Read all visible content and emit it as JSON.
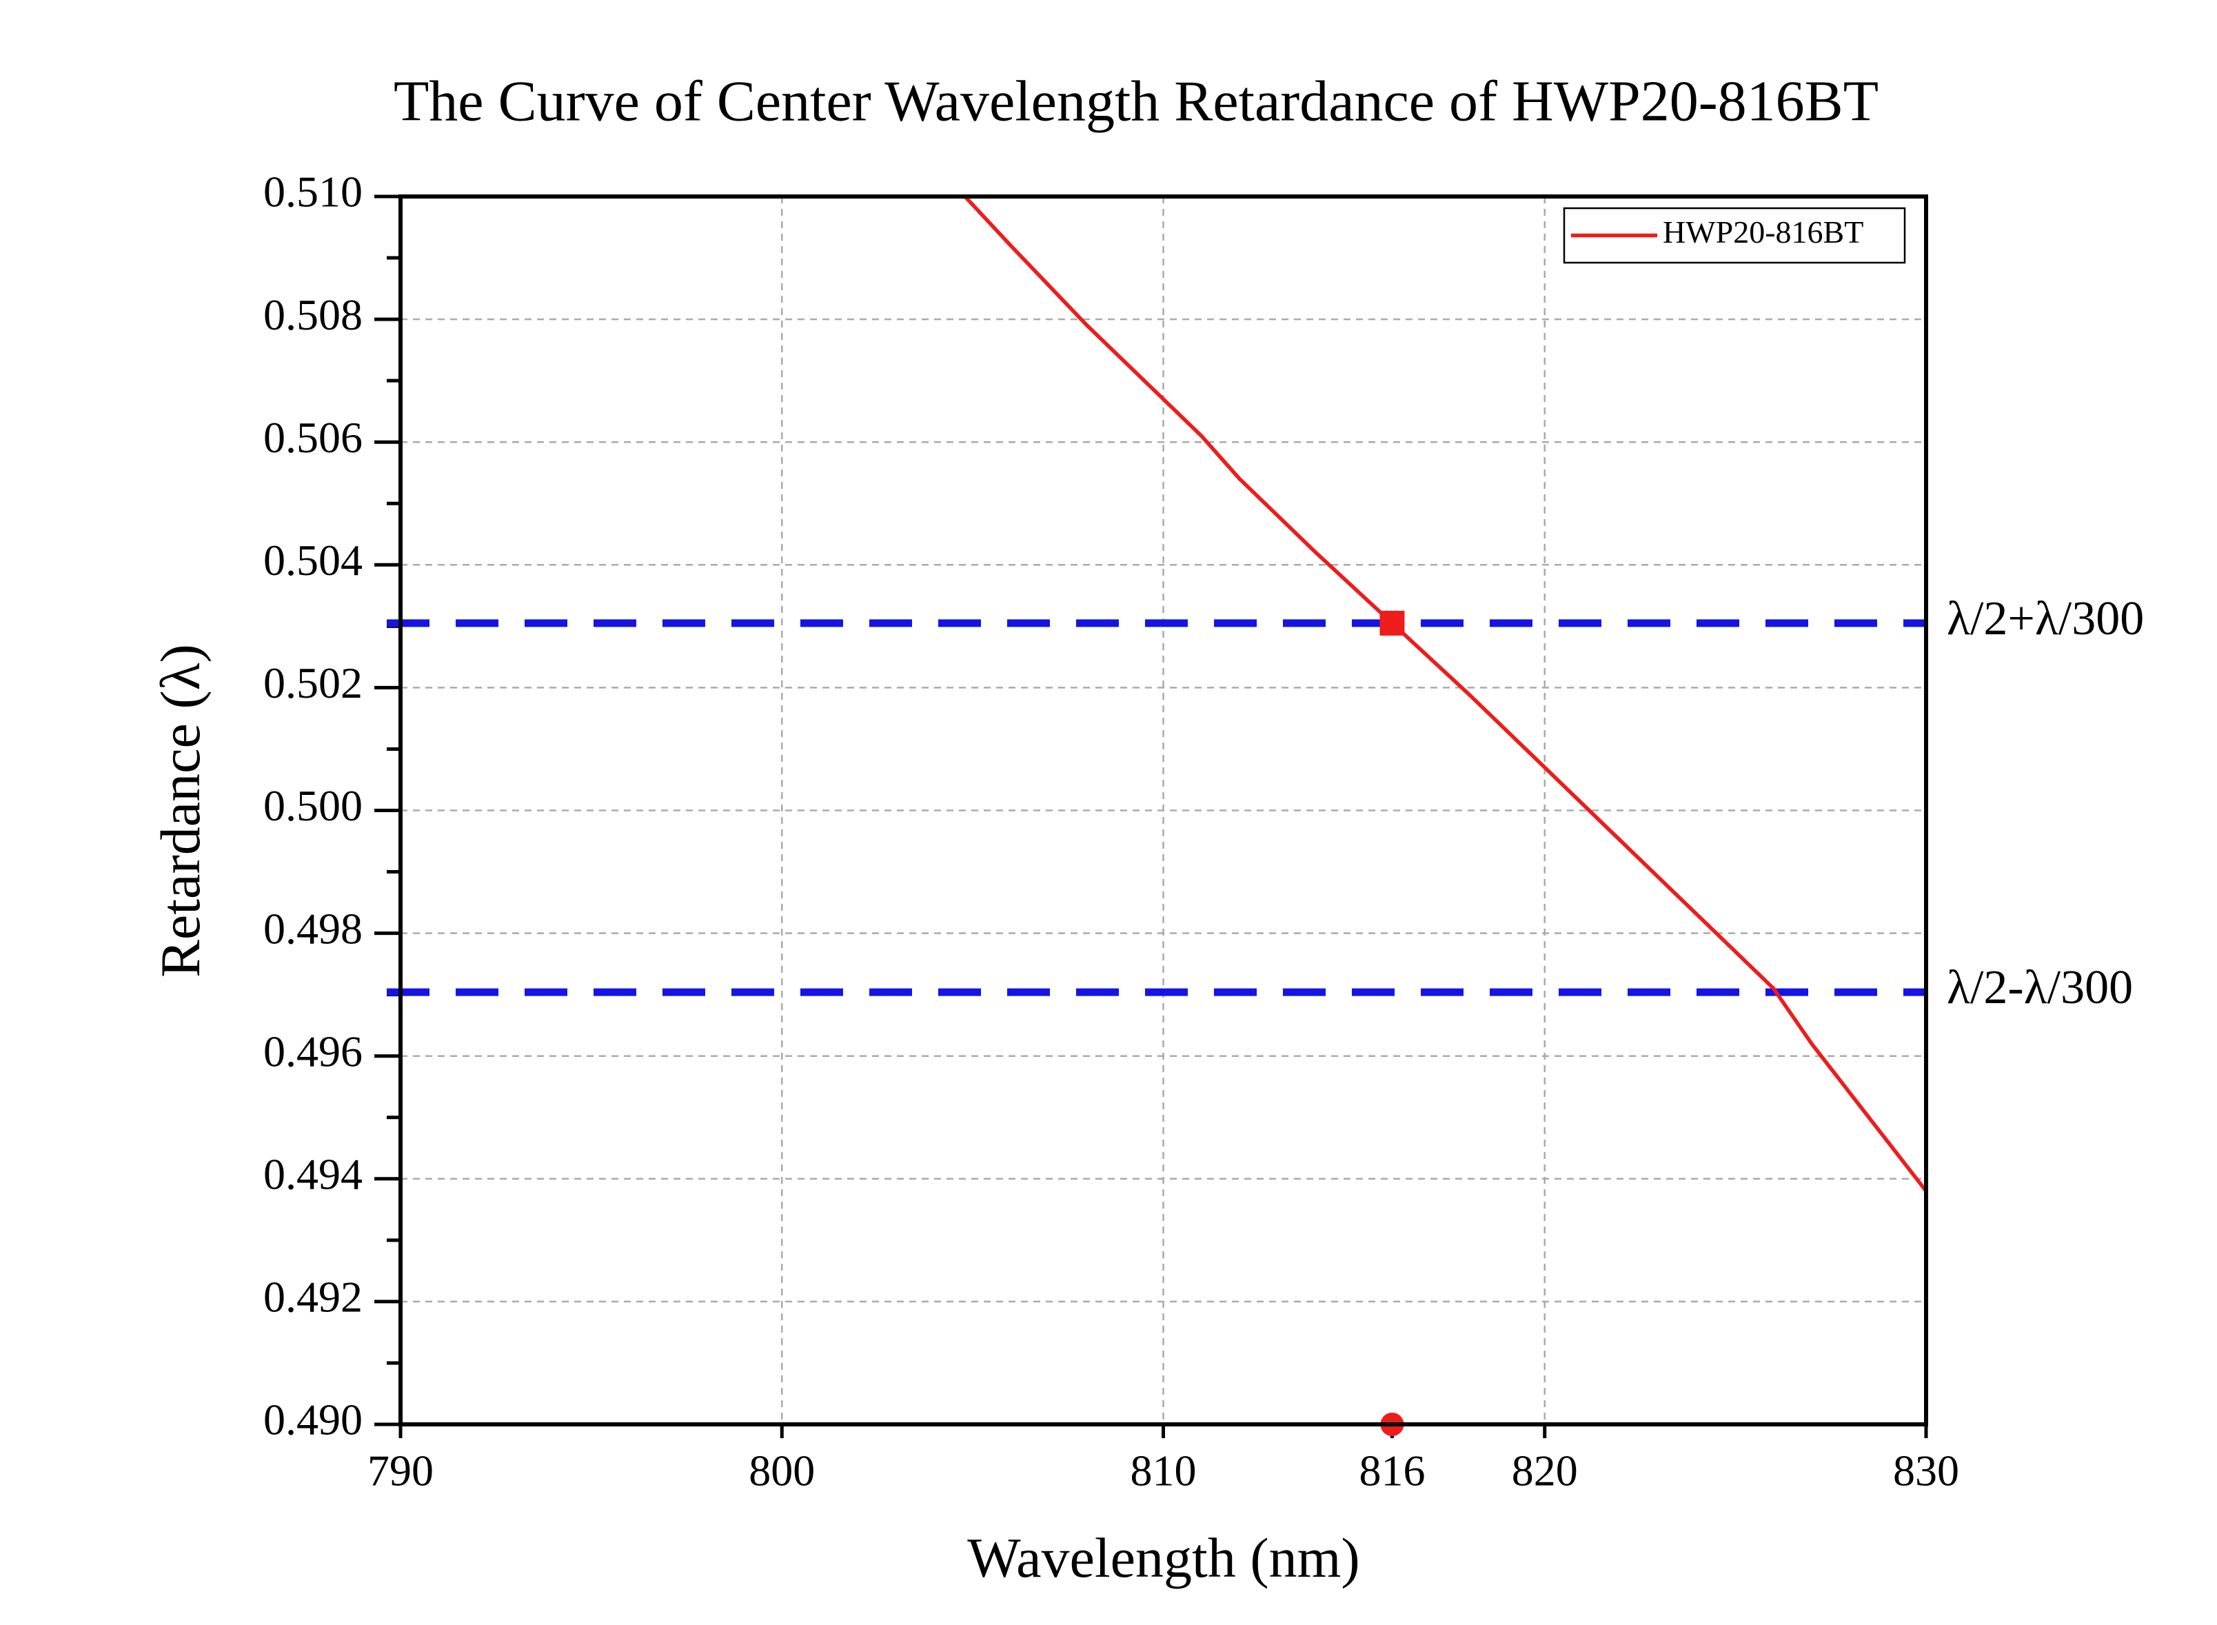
{
  "chart_data": {
    "type": "line",
    "title": "The Curve of  Center Wavelength Retardance of HWP20-816BT",
    "x_label": "Wavelength (nm)",
    "y_label": "Retardance (λ)",
    "x": [
      804.8,
      806,
      808,
      810,
      811,
      812,
      814,
      816,
      818,
      820,
      822,
      824,
      826,
      827,
      828,
      829,
      830
    ],
    "series": [
      {
        "name": "HWP20-816BT",
        "color": "#ee1c1c",
        "values": [
          0.51,
          0.5092,
          0.5079,
          0.5067,
          0.5061,
          0.5054,
          0.5042,
          0.50305,
          0.5019,
          0.5007,
          0.4995,
          0.4983,
          0.4971,
          0.4962,
          0.4954,
          0.4946,
          0.4938
        ]
      }
    ],
    "reference_lines": [
      {
        "y": 0.50305,
        "label": "λ/2+λ/300",
        "color": "#1414e6"
      },
      {
        "y": 0.49704,
        "label": "λ/2-λ/300",
        "color": "#1414e6"
      }
    ],
    "markers": [
      {
        "x": 816,
        "y": 0.50305,
        "shape": "square",
        "color": "#ee1c1c"
      },
      {
        "x": 816,
        "y": 0.49,
        "shape": "circle",
        "color": "#ee1c1c"
      }
    ],
    "xlim": [
      790,
      830
    ],
    "xticks": [
      790,
      800,
      810,
      816,
      820,
      830
    ],
    "ylim": [
      0.49,
      0.51
    ],
    "yticks": [
      {
        "value": 0.49,
        "label": "0.490"
      },
      0.492,
      0.494,
      0.496,
      0.498,
      {
        "value": 0.5,
        "label": "0.500"
      },
      0.502,
      0.504,
      0.506,
      0.508,
      {
        "value": 0.51,
        "label": "0.510"
      }
    ],
    "grid": true,
    "legend": "upper right"
  }
}
